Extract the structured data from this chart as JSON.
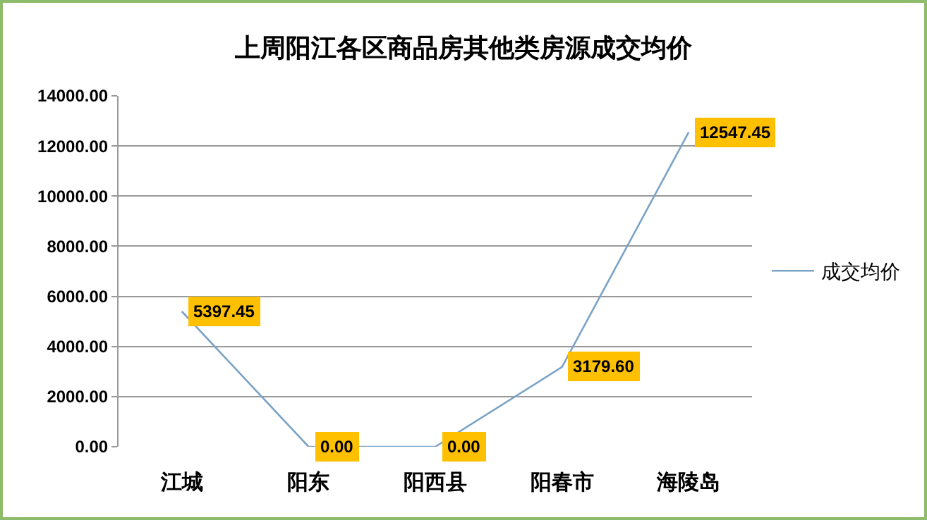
{
  "chart_data": {
    "type": "line",
    "title": "上周阳江各区商品房其他类房源成交均价",
    "categories": [
      "江城",
      "阳东",
      "阳西县",
      "阳春市",
      "海陵岛"
    ],
    "series": [
      {
        "name": "成交均价",
        "color": "#7ba3c6",
        "values": [
          5397.45,
          0,
          0,
          3179.6,
          12547.45
        ],
        "value_labels": [
          "5397.45",
          "0.00",
          "0.00",
          "3179.60",
          "12547.45"
        ]
      }
    ],
    "ylim": [
      0,
      14000
    ],
    "yticks": [
      {
        "value": 0,
        "label": "0.00"
      },
      {
        "value": 2000,
        "label": "2000.00"
      },
      {
        "value": 4000,
        "label": "4000.00"
      },
      {
        "value": 6000,
        "label": "6000.00"
      },
      {
        "value": 8000,
        "label": "8000.00"
      },
      {
        "value": 10000,
        "label": "10000.00"
      },
      {
        "value": 12000,
        "label": "12000.00"
      },
      {
        "value": 14000,
        "label": "14000.00"
      }
    ],
    "grid": "y",
    "legend": "right",
    "marker": "none",
    "line_style": "solid"
  }
}
